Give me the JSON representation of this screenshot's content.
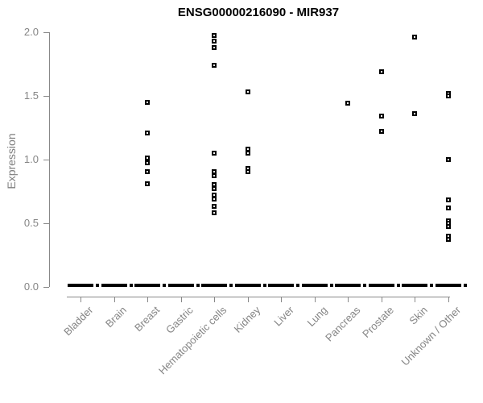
{
  "chart_data": {
    "type": "scatter",
    "subtype": "strip-plot",
    "title": "ENSG00000216090 - MIR937",
    "xlabel": "",
    "ylabel": "Expression",
    "ylim": [
      0,
      2.0
    ],
    "yticks": [
      0.0,
      0.5,
      1.0,
      1.5,
      2.0
    ],
    "ytick_labels": [
      "0.0",
      "0.5",
      "1.0",
      "1.5",
      "2.0"
    ],
    "grid": false,
    "legend": "none",
    "point_style": "open-square",
    "categories": [
      "Bladder",
      "Brain",
      "Breast",
      "Gastric",
      "Hematopoietic cells",
      "Kidney",
      "Liver",
      "Lung",
      "Pancreas",
      "Prostate",
      "Skin",
      "Unknown / Other"
    ],
    "series": [
      {
        "category": "Bladder",
        "values": [],
        "zero_cluster": true
      },
      {
        "category": "Brain",
        "values": [],
        "zero_cluster": true
      },
      {
        "category": "Breast",
        "values": [
          1.45,
          1.21,
          1.01,
          0.97,
          0.9,
          0.81
        ],
        "zero_cluster": true
      },
      {
        "category": "Gastric",
        "values": [],
        "zero_cluster": true
      },
      {
        "category": "Hematopoietic cells",
        "values": [
          1.97,
          1.93,
          1.88,
          1.74,
          1.05,
          0.9,
          0.87,
          0.8,
          0.77,
          0.72,
          0.69,
          0.63,
          0.58
        ],
        "zero_cluster": true
      },
      {
        "category": "Kidney",
        "values": [
          1.53,
          1.08,
          1.05,
          0.93,
          0.9
        ],
        "zero_cluster": true
      },
      {
        "category": "Liver",
        "values": [],
        "zero_cluster": true
      },
      {
        "category": "Lung",
        "values": [],
        "zero_cluster": true
      },
      {
        "category": "Pancreas",
        "values": [
          1.44
        ],
        "zero_cluster": true
      },
      {
        "category": "Prostate",
        "values": [
          1.69,
          1.34,
          1.22
        ],
        "zero_cluster": true
      },
      {
        "category": "Skin",
        "values": [
          1.96,
          1.36
        ],
        "zero_cluster": true
      },
      {
        "category": "Unknown / Other",
        "values": [
          1.52,
          1.5,
          1.0,
          0.68,
          0.62,
          0.52,
          0.5,
          0.47,
          0.4,
          0.37
        ],
        "zero_cluster": true
      }
    ],
    "colors": {
      "point": "#000000",
      "zero_bar": "#000000",
      "axis": "#888888",
      "tick_text": "#858585",
      "title_text": "#000000"
    }
  }
}
